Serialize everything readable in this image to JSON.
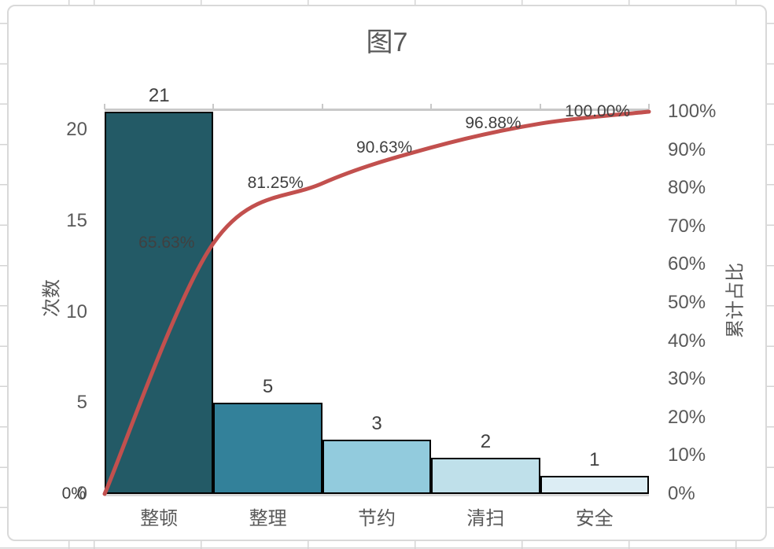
{
  "chart": {
    "title": "图7",
    "left_axis_title": "次数",
    "right_axis_title": "累计占比"
  },
  "chart_data": {
    "type": "bar",
    "subtype": "pareto-combo-bar-line",
    "title": "图7",
    "categories": [
      "整顿",
      "整理",
      "节约",
      "清扫",
      "安全"
    ],
    "series": [
      {
        "name": "次数",
        "kind": "bar",
        "values": [
          21,
          5,
          3,
          2,
          1
        ],
        "data_labels": [
          "21",
          "5",
          "3",
          "2",
          "1"
        ]
      },
      {
        "name": "累计占比",
        "kind": "line",
        "values_pct": [
          0,
          65.625,
          81.25,
          90.625,
          96.875,
          100
        ],
        "data_labels": [
          "0%",
          "65.63%",
          "81.25%",
          "90.63%",
          "96.88%",
          "100.00%"
        ],
        "smoothed": true
      }
    ],
    "left_axis": {
      "label": "次数",
      "tick_labels": [
        "0",
        "5",
        "10",
        "15",
        "20"
      ],
      "tick_values": [
        0,
        5,
        10,
        15,
        20
      ],
      "min": 0,
      "max": 21
    },
    "right_axis": {
      "label": "累计占比",
      "tick_labels": [
        "0%",
        "10%",
        "20%",
        "30%",
        "40%",
        "50%",
        "60%",
        "70%",
        "80%",
        "90%",
        "100%"
      ],
      "tick_values": [
        0,
        10,
        20,
        30,
        40,
        50,
        60,
        70,
        80,
        90,
        100
      ],
      "min": 0,
      "max": 100
    },
    "colors": {
      "bars": [
        "#235a66",
        "#33819a",
        "#92cbdd",
        "#bfe0ea",
        "#dcedf4"
      ],
      "bar_border": "#000000",
      "line": "#c2504e",
      "top_axis_line": "#c9c9c9",
      "bottom_axis_line": "#d9d9d9",
      "text_ticks": "#595959",
      "text_data_labels": "#404040"
    },
    "grid": "off",
    "legend": "none"
  }
}
